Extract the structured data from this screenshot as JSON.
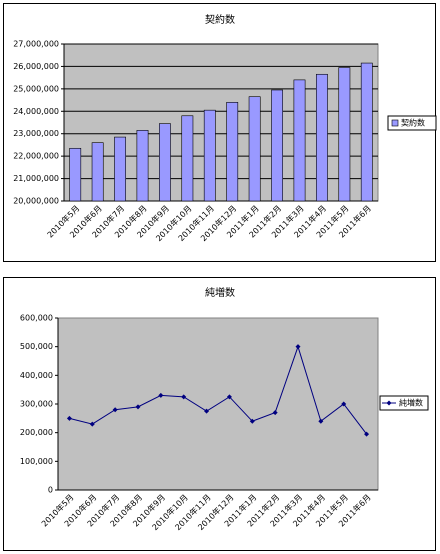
{
  "chart_data": [
    {
      "type": "bar",
      "title": "契約数",
      "categories": [
        "2010年5月",
        "2010年6月",
        "2010年7月",
        "2010年8月",
        "2010年9月",
        "2010年10月",
        "2010年11月",
        "2010年12月",
        "2011年1月",
        "2011年2月",
        "2011年3月",
        "2011年4月",
        "2011年5月",
        "2011年6月"
      ],
      "series": [
        {
          "name": "契約数",
          "color": "#9999ff",
          "values": [
            22350000,
            22600000,
            22850000,
            23150000,
            23450000,
            23800000,
            24050000,
            24400000,
            24650000,
            24950000,
            25400000,
            25650000,
            25950000,
            26150000
          ]
        }
      ],
      "ylim": [
        20000000,
        27000000
      ],
      "yticks": [
        {
          "value": 20000000,
          "label": "20,000,000"
        },
        {
          "value": 21000000,
          "label": "21,000,000"
        },
        {
          "value": 22000000,
          "label": "22,000,000"
        },
        {
          "value": 23000000,
          "label": "23,000,000"
        },
        {
          "value": 24000000,
          "label": "24,000,000"
        },
        {
          "value": 25000000,
          "label": "25,000,000"
        },
        {
          "value": 26000000,
          "label": "26,000,000"
        },
        {
          "value": 27000000,
          "label": "27,000,000"
        }
      ],
      "grid": true,
      "legend": "right"
    },
    {
      "type": "line",
      "title": "純増数",
      "categories": [
        "2010年5月",
        "2010年6月",
        "2010年7月",
        "2010年8月",
        "2010年9月",
        "2010年10月",
        "2010年11月",
        "2010年12月",
        "2011年1月",
        "2011年2月",
        "2011年3月",
        "2011年4月",
        "2011年5月",
        "2011年6月"
      ],
      "series": [
        {
          "name": "純増数",
          "color": "#000080",
          "values": [
            250000,
            230000,
            280000,
            290000,
            330000,
            325000,
            275000,
            325000,
            240000,
            270000,
            500000,
            240000,
            300000,
            195000
          ]
        }
      ],
      "ylim": [
        0,
        600000
      ],
      "yticks": [
        0,
        {
          "value": 100000,
          "label": "100,000"
        },
        {
          "value": 200000,
          "label": "200,000"
        },
        {
          "value": 300000,
          "label": "300,000"
        },
        {
          "value": 400000,
          "label": "400,000"
        },
        {
          "value": 500000,
          "label": "500,000"
        },
        {
          "value": 600000,
          "label": "600,000"
        }
      ],
      "grid": false,
      "legend": "right"
    }
  ]
}
